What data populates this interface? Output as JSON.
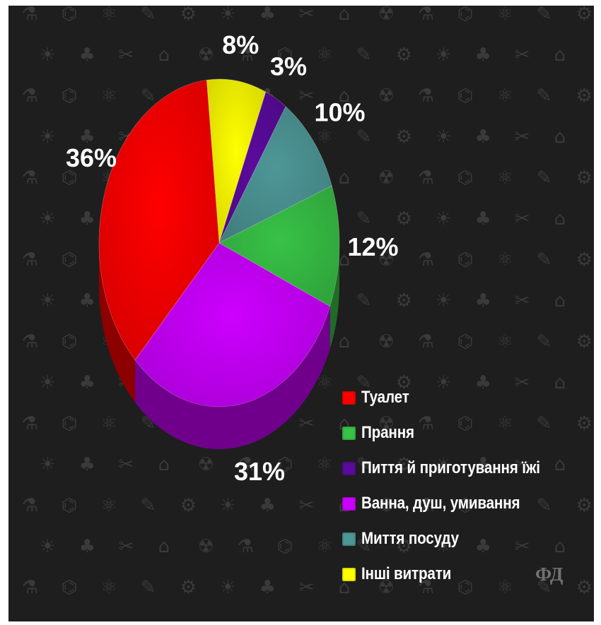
{
  "chart_data": {
    "type": "pie",
    "title": "",
    "unit": "%",
    "slices": [
      {
        "label": "Туалет",
        "value": 36,
        "value_label": "36%",
        "color": "#ff0000"
      },
      {
        "label": "Ванна, душ, умивання",
        "value": 31,
        "value_label": "31%",
        "color": "#cc00ff"
      },
      {
        "label": "Прання",
        "value": 12,
        "value_label": "12%",
        "color": "#38c247"
      },
      {
        "label": "Миття посуду",
        "value": 10,
        "value_label": "10%",
        "color": "#4e9797"
      },
      {
        "label": "Пиття й приготування їжі",
        "value": 3,
        "value_label": "3%",
        "color": "#5b0b9c"
      },
      {
        "label": "Інші витрати",
        "value": 8,
        "value_label": "8%",
        "color": "#ffff00"
      }
    ],
    "legend": {
      "position": "bottom-right",
      "order": [
        "Туалет",
        "Прання",
        "Пиття й приготування їжі",
        "Ванна, душ, умивання",
        "Миття посуду",
        "Інші витрати"
      ]
    },
    "style": "3d-pie",
    "background_color": "#1e1e1e"
  },
  "watermark": "ФД"
}
